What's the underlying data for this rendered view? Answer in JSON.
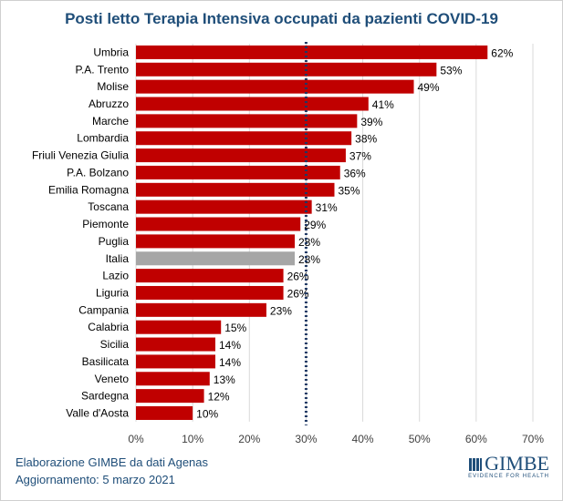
{
  "chart_data": {
    "type": "bar",
    "orientation": "horizontal",
    "title": "Posti letto Terapia Intensiva occupati da pazienti COVID-19",
    "categories": [
      "Umbria",
      "P.A. Trento",
      "Molise",
      "Abruzzo",
      "Marche",
      "Lombardia",
      "Friuli Venezia Giulia",
      "P.A. Bolzano",
      "Emilia Romagna",
      "Toscana",
      "Piemonte",
      "Puglia",
      "Italia",
      "Lazio",
      "Liguria",
      "Campania",
      "Calabria",
      "Sicilia",
      "Basilicata",
      "Veneto",
      "Sardegna",
      "Valle d'Aosta"
    ],
    "values": [
      62,
      53,
      49,
      41,
      39,
      38,
      37,
      36,
      35,
      31,
      29,
      28,
      28,
      26,
      26,
      23,
      15,
      14,
      14,
      13,
      12,
      10
    ],
    "labels": [
      "62%",
      "53%",
      "49%",
      "41%",
      "39%",
      "38%",
      "37%",
      "36%",
      "35%",
      "31%",
      "29%",
      "28%",
      "28%",
      "26%",
      "26%",
      "23%",
      "15%",
      "14%",
      "14%",
      "13%",
      "12%",
      "10%"
    ],
    "highlight": "Italia",
    "xlim": [
      0,
      70
    ],
    "xticks": [
      "0%",
      "10%",
      "20%",
      "30%",
      "40%",
      "50%",
      "60%",
      "70%"
    ],
    "reference_line": 30,
    "grid": true,
    "colors": {
      "bar": "#c00000",
      "highlight": "#a6a6a6",
      "reference": "#1f3864",
      "title": "#1f4e79"
    }
  },
  "footer": {
    "line1": "Elaborazione GIMBE da dati Agenas",
    "line2": "Aggiornamento: 5 marzo 2021"
  },
  "logo": {
    "name": "GIMBE",
    "tagline": "EVIDENCE FOR HEALTH"
  }
}
